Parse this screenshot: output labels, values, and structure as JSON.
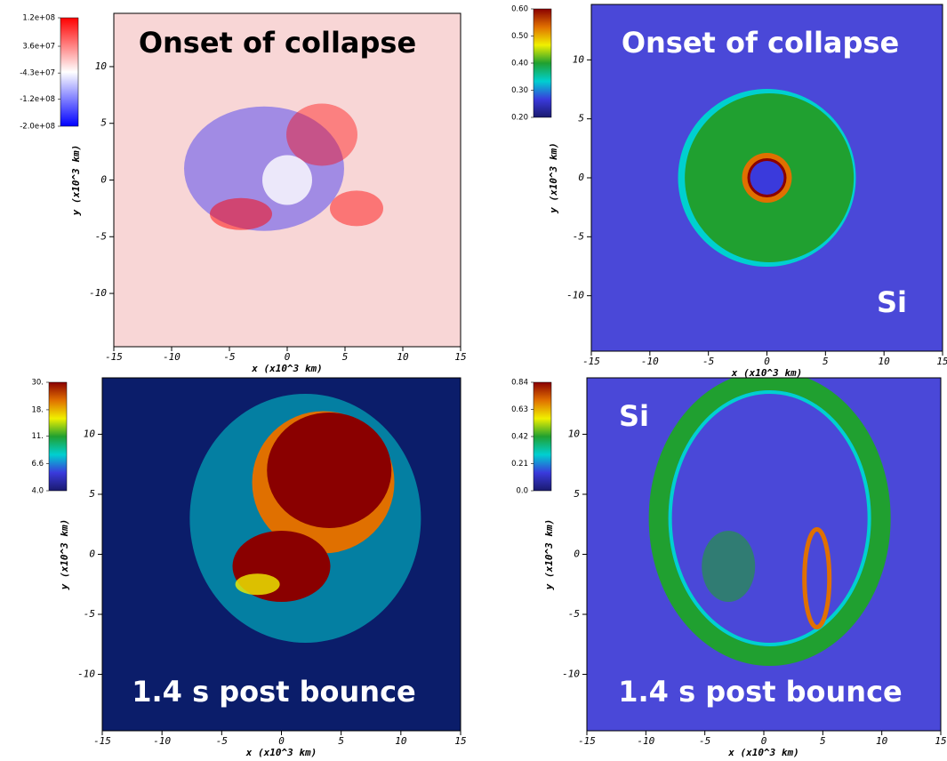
{
  "chart_data": [
    {
      "type": "image",
      "xlabel": "x (x10^3 km)",
      "ylabel": "y (x10^3 km)",
      "xlim": [
        -15,
        15
      ],
      "ylim": [
        -14.7,
        14.7
      ],
      "xticks": [
        -15,
        -10,
        -5,
        0,
        5,
        10,
        15
      ],
      "yticks": [
        -10,
        -5,
        0,
        5,
        10
      ],
      "background": "#f8d6d6",
      "annotations": [
        {
          "text": "Onset of collapse",
          "color": "#000000"
        }
      ],
      "colorbar": {
        "lim": [
          -200000000,
          120000000
        ],
        "log": false,
        "colors": [
          "#0000ff",
          "#ffffff",
          "#ff0000"
        ],
        "ticks": [
          {
            "value": 120000000,
            "label": "1.2e+08"
          },
          {
            "value": 36000000,
            "label": "3.6e+07"
          },
          {
            "value": -43000000,
            "label": "-4.3e+07"
          },
          {
            "value": -120000000,
            "label": "-1.2e+08"
          },
          {
            "value": -200000000,
            "label": "-2.0e+08"
          }
        ]
      }
    },
    {
      "type": "image",
      "xlabel": "x (x10^3 km)",
      "ylabel": "y (x10^3 km)",
      "xlim": [
        -15,
        15
      ],
      "ylim": [
        -14.7,
        14.7
      ],
      "xticks": [
        -15,
        -10,
        -5,
        0,
        5,
        10,
        15
      ],
      "yticks": [
        -10,
        -5,
        0,
        5,
        10
      ],
      "background": "#4a48d8",
      "annotations": [
        {
          "text": "Onset of collapse",
          "color": "#ffffff"
        },
        {
          "text": "Si",
          "color": "#ffffff"
        }
      ],
      "colorbar": {
        "lim": [
          0.2,
          0.6
        ],
        "log": false,
        "colors": [
          "#1a1a6e",
          "#3a3adc",
          "#00d0d0",
          "#20a030",
          "#f0f000",
          "#e07000",
          "#8a0000"
        ],
        "ticks": [
          {
            "value": 0.6,
            "label": "0.60"
          },
          {
            "value": 0.5,
            "label": "0.50"
          },
          {
            "value": 0.4,
            "label": "0.40"
          },
          {
            "value": 0.3,
            "label": "0.30"
          },
          {
            "value": 0.2,
            "label": "0.20"
          }
        ]
      }
    },
    {
      "type": "image",
      "xlabel": "x (x10^3 km)",
      "ylabel": "y (x10^3 km)",
      "xlim": [
        -15,
        15
      ],
      "ylim": [
        -14.7,
        14.7
      ],
      "xticks": [
        -15,
        -10,
        -5,
        0,
        5,
        10,
        15
      ],
      "yticks": [
        -10,
        -5,
        0,
        5,
        10
      ],
      "background": "#0b1d6a",
      "annotations": [
        {
          "text": "1.4 s post bounce",
          "color": "#ffffff"
        }
      ],
      "colorbar": {
        "lim": [
          4,
          30
        ],
        "log": true,
        "colors": [
          "#1a1a6e",
          "#3a3adc",
          "#00d0d0",
          "#20a030",
          "#f0f000",
          "#e07000",
          "#8a0000"
        ],
        "ticks": [
          {
            "value": 30,
            "label": "30."
          },
          {
            "value": 18,
            "label": "18."
          },
          {
            "value": 11,
            "label": "11."
          },
          6.6,
          {
            "value": 4,
            "label": "4.0"
          }
        ]
      }
    },
    {
      "type": "image",
      "xlabel": "x (x10^3 km)",
      "ylabel": "y (x10^3 km)",
      "xlim": [
        -15,
        15
      ],
      "ylim": [
        -14.7,
        14.7
      ],
      "xticks": [
        -15,
        -10,
        -5,
        0,
        5,
        10,
        15
      ],
      "yticks": [
        -10,
        -5,
        0,
        5,
        10
      ],
      "background": "#4a48d8",
      "annotations": [
        {
          "text": "Si",
          "color": "#ffffff"
        },
        {
          "text": "1.4 s post bounce",
          "color": "#ffffff"
        }
      ],
      "colorbar": {
        "lim": [
          0,
          0.84
        ],
        "log": false,
        "colors": [
          "#1a1a6e",
          "#3a3adc",
          "#00d0d0",
          "#20a030",
          "#f0f000",
          "#e07000",
          "#8a0000"
        ],
        "ticks": [
          0.84,
          0.63,
          0.42,
          0.21,
          {
            "value": 0,
            "label": "0.0"
          }
        ]
      }
    }
  ]
}
